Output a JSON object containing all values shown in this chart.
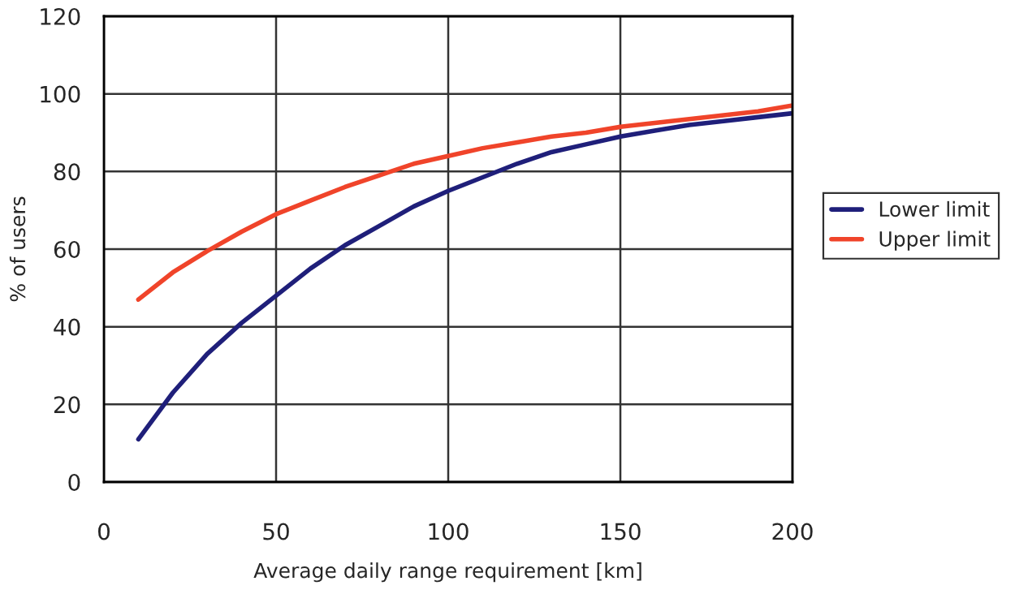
{
  "chart_data": {
    "type": "line",
    "xlabel": "Average daily range requirement [km]",
    "ylabel": "% of users",
    "x": [
      10,
      20,
      30,
      40,
      50,
      60,
      70,
      80,
      90,
      100,
      110,
      120,
      130,
      140,
      150,
      160,
      170,
      180,
      190,
      200
    ],
    "series": [
      {
        "name": "Lower limit",
        "color": "#1f1f7a",
        "values": [
          11,
          23,
          33,
          41,
          48,
          55,
          61,
          66,
          71,
          75,
          78.5,
          82,
          85,
          87,
          89,
          90.5,
          92,
          93,
          94,
          95
        ]
      },
      {
        "name": "Upper limit",
        "color": "#f0442a",
        "values": [
          47,
          54,
          59.5,
          64.5,
          69,
          72.5,
          76,
          79,
          82,
          84,
          86,
          87.5,
          89,
          90,
          91.5,
          92.5,
          93.5,
          94.5,
          95.5,
          97
        ]
      }
    ],
    "xlim": [
      0,
      200
    ],
    "xticks": [
      0,
      50,
      100,
      150,
      200
    ],
    "ylim": [
      0,
      120
    ],
    "yticks": [
      0,
      20,
      40,
      60,
      80,
      100,
      120
    ],
    "grid": true,
    "legend": "right",
    "marker": "none",
    "line_style": "solid"
  }
}
